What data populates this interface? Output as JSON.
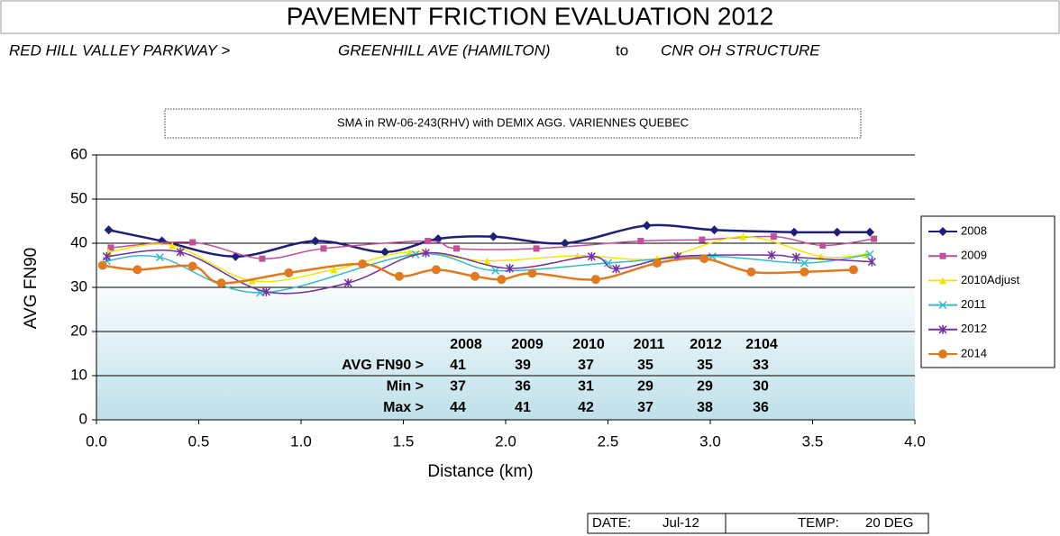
{
  "header": {
    "title": "PAVEMENT FRICTION EVALUATION 2012",
    "route": "RED HILL VALLEY PARKWAY >",
    "from": "GREENHILL AVE (HAMILTON)",
    "to_word": "to",
    "to": "CNR OH STRUCTURE"
  },
  "chart_data": {
    "type": "line",
    "title": "SMA in RW-06-243(RHV) with DEMIX AGG. VARIENNES QUEBEC",
    "ylabel": "AVG FN90",
    "xlabel": "Distance (km)",
    "xlim": [
      0,
      4
    ],
    "xticks": [
      {
        "value": 0,
        "label": "0.0"
      },
      {
        "value": 0.5,
        "label": "0.5"
      },
      {
        "value": 1,
        "label": "1.0"
      },
      {
        "value": 1.5,
        "label": "1.5"
      },
      {
        "value": 2,
        "label": "2.0"
      },
      {
        "value": 2.5,
        "label": "2.5"
      },
      {
        "value": 3,
        "label": "3.0"
      },
      {
        "value": 3.5,
        "label": "3.5"
      },
      {
        "value": 4,
        "label": "4.0"
      }
    ],
    "ylim": [
      0,
      60
    ],
    "yticks": [
      0,
      10,
      20,
      30,
      40,
      50,
      60
    ],
    "grid": true,
    "legend": "right",
    "series": [
      {
        "name": "2008",
        "color": "#1f1f7a",
        "marker": "diamond",
        "x": [
          0.06,
          0.32,
          0.68,
          1.07,
          1.41,
          1.67,
          1.94,
          2.29,
          2.69,
          3.02,
          3.41,
          3.62,
          3.78
        ],
        "values": [
          43,
          40.5,
          37,
          40.5,
          38,
          41,
          41.5,
          40,
          44,
          43,
          42.5,
          42.5,
          42.5
        ]
      },
      {
        "name": "2009",
        "color": "#c0509a",
        "marker": "square",
        "x": [
          0.07,
          0.47,
          0.81,
          1.11,
          1.62,
          1.76,
          2.15,
          2.66,
          2.96,
          3.31,
          3.55,
          3.8
        ],
        "values": [
          39,
          40.2,
          36.5,
          38.8,
          40.5,
          38.8,
          38.8,
          40.5,
          40.8,
          41.5,
          39.5,
          41
        ]
      },
      {
        "name": "2010Adjust",
        "color": "#f2e600",
        "marker": "triangle",
        "x": [
          0.06,
          0.37,
          0.76,
          1.16,
          1.53,
          1.91,
          2.35,
          2.74,
          3.16,
          3.54,
          3.76
        ],
        "values": [
          38,
          39.5,
          31.5,
          34,
          38,
          36,
          37.2,
          36.5,
          41.5,
          37,
          37.5
        ]
      },
      {
        "name": "2011",
        "color": "#33bbcc",
        "marker": "x",
        "x": [
          0.05,
          0.31,
          0.8,
          1.56,
          1.95,
          2.5,
          3.01,
          3.46,
          3.78
        ],
        "values": [
          36,
          36.8,
          28.8,
          37.5,
          33.8,
          35.5,
          37,
          35.5,
          37.5
        ]
      },
      {
        "name": "2012",
        "color": "#7030a0",
        "marker": "star",
        "x": [
          0.05,
          0.41,
          0.83,
          1.23,
          1.61,
          2.02,
          2.42,
          2.54,
          2.84,
          3.3,
          3.42,
          3.79
        ],
        "values": [
          37,
          38,
          29,
          31,
          37.8,
          34.3,
          37,
          34.2,
          37,
          37.3,
          36.8,
          35.8
        ]
      },
      {
        "name": "2014",
        "color": "#e07a20",
        "marker": "circle",
        "x": [
          0.03,
          0.2,
          0.47,
          0.61,
          0.94,
          1.3,
          1.48,
          1.66,
          1.85,
          1.98,
          2.13,
          2.44,
          2.74,
          2.97,
          3.2,
          3.46,
          3.7
        ],
        "values": [
          35,
          34,
          34.8,
          31,
          33.3,
          35.3,
          32.5,
          34,
          32.5,
          31.8,
          33.2,
          31.8,
          35.5,
          36.5,
          33.5,
          33.5,
          34
        ]
      }
    ]
  },
  "summary_table": {
    "columns": [
      "2008",
      "2009",
      "2010",
      "2011",
      "2012",
      "2104"
    ],
    "rows": [
      {
        "label": "AVG FN90 >",
        "values": [
          "41",
          "39",
          "37",
          "35",
          "35",
          "33"
        ]
      },
      {
        "label": "Min >",
        "values": [
          "37",
          "36",
          "31",
          "29",
          "29",
          "30"
        ]
      },
      {
        "label": "Max >",
        "values": [
          "44",
          "41",
          "42",
          "37",
          "38",
          "36"
        ]
      }
    ]
  },
  "footer": {
    "date_label": "DATE:",
    "date": "Jul-12",
    "temp_label": "TEMP:",
    "temp": "20 DEG"
  }
}
